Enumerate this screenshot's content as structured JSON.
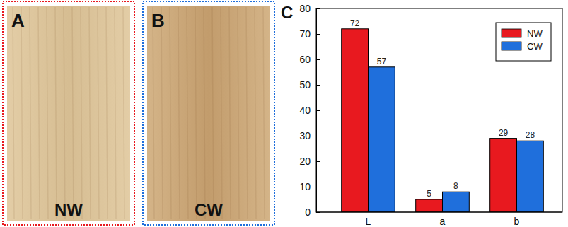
{
  "panels": [
    {
      "label": "A",
      "caption": "NW"
    },
    {
      "label": "B",
      "caption": "CW"
    },
    {
      "label": "C"
    }
  ],
  "chart_data": {
    "type": "bar",
    "categories": [
      "L",
      "a",
      "b"
    ],
    "series": [
      {
        "name": "NW",
        "color": "#e8191f",
        "values": [
          72,
          5,
          29
        ]
      },
      {
        "name": "CW",
        "color": "#1f6fdc",
        "values": [
          57,
          8,
          28
        ]
      }
    ],
    "ylim": [
      0,
      80
    ],
    "yticks": [
      0,
      10,
      20,
      30,
      40,
      50,
      60,
      70,
      80
    ],
    "data_labels": true,
    "legend": "top-right",
    "grid": false
  }
}
